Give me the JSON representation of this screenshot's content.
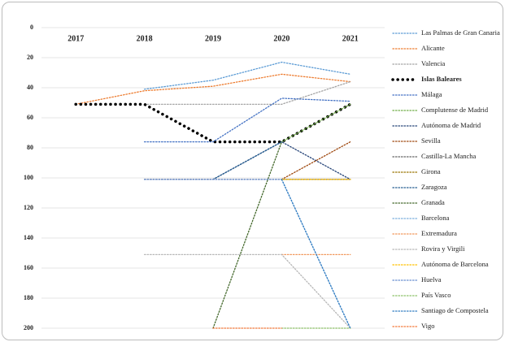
{
  "chart_data": {
    "type": "line",
    "categories": [
      "2017",
      "2018",
      "2019",
      "2020",
      "2021"
    ],
    "ylim": [
      0,
      200
    ],
    "reversed": true,
    "yticks": [
      0,
      20,
      40,
      60,
      80,
      100,
      120,
      140,
      160,
      180,
      200
    ],
    "grid": true,
    "series": [
      {
        "name": "Las Palmas de Gran Canaria",
        "color": "#5b9bd5",
        "values": [
          null,
          41,
          35,
          23,
          31
        ]
      },
      {
        "name": "Alicante",
        "color": "#ed7d31",
        "values": [
          51,
          42,
          39,
          31,
          36
        ]
      },
      {
        "name": "Valencia",
        "color": "#a5a5a5",
        "values": [
          null,
          51,
          51,
          51,
          36
        ]
      },
      {
        "name": "Islas Baleares",
        "color": "#000000",
        "values": [
          51,
          51,
          76,
          76,
          51
        ]
      },
      {
        "name": "Málaga",
        "color": "#4472c4",
        "values": [
          null,
          76,
          76,
          47,
          49
        ]
      },
      {
        "name": "Complutense de Madrid",
        "color": "#70ad47",
        "values": [
          null,
          null,
          null,
          76,
          51
        ]
      },
      {
        "name": "Autónoma de Madrid",
        "color": "#264478",
        "values": [
          null,
          101,
          101,
          76,
          101
        ]
      },
      {
        "name": "Sevilla",
        "color": "#9e480e",
        "values": [
          null,
          null,
          null,
          101,
          76
        ]
      },
      {
        "name": "Castilla-La Mancha",
        "color": "#636363",
        "values": [
          null,
          101,
          101,
          101,
          101
        ]
      },
      {
        "name": "Girona",
        "color": "#997300",
        "values": [
          null,
          null,
          null,
          101,
          101
        ]
      },
      {
        "name": "Zaragoza",
        "color": "#255e91",
        "values": [
          null,
          null,
          101,
          76,
          null
        ]
      },
      {
        "name": "Granada",
        "color": "#43682b",
        "values": [
          null,
          null,
          200,
          76,
          null
        ]
      },
      {
        "name": "Barcelona",
        "color": "#7cafdd",
        "values": [
          null,
          null,
          null,
          101,
          200
        ]
      },
      {
        "name": "Extremadura",
        "color": "#f1975a",
        "values": [
          null,
          null,
          null,
          151,
          151
        ]
      },
      {
        "name": "Rovira y Virgili",
        "color": "#b7b7b7",
        "values": [
          null,
          151,
          151,
          151,
          200
        ]
      },
      {
        "name": "Autónoma de Barcelona",
        "color": "#ffc000",
        "values": [
          null,
          null,
          null,
          101,
          101
        ]
      },
      {
        "name": "Huelva",
        "color": "#698ed0",
        "values": [
          null,
          101,
          101,
          101,
          null
        ]
      },
      {
        "name": "País Vasco",
        "color": "#8cc168",
        "values": [
          null,
          null,
          null,
          200,
          200
        ]
      },
      {
        "name": "Santiago de Compostela",
        "color": "#327dc2",
        "values": [
          null,
          null,
          null,
          101,
          200
        ]
      },
      {
        "name": "Vigo",
        "color": "#f4793b",
        "values": [
          null,
          null,
          200,
          200,
          null
        ]
      }
    ]
  }
}
